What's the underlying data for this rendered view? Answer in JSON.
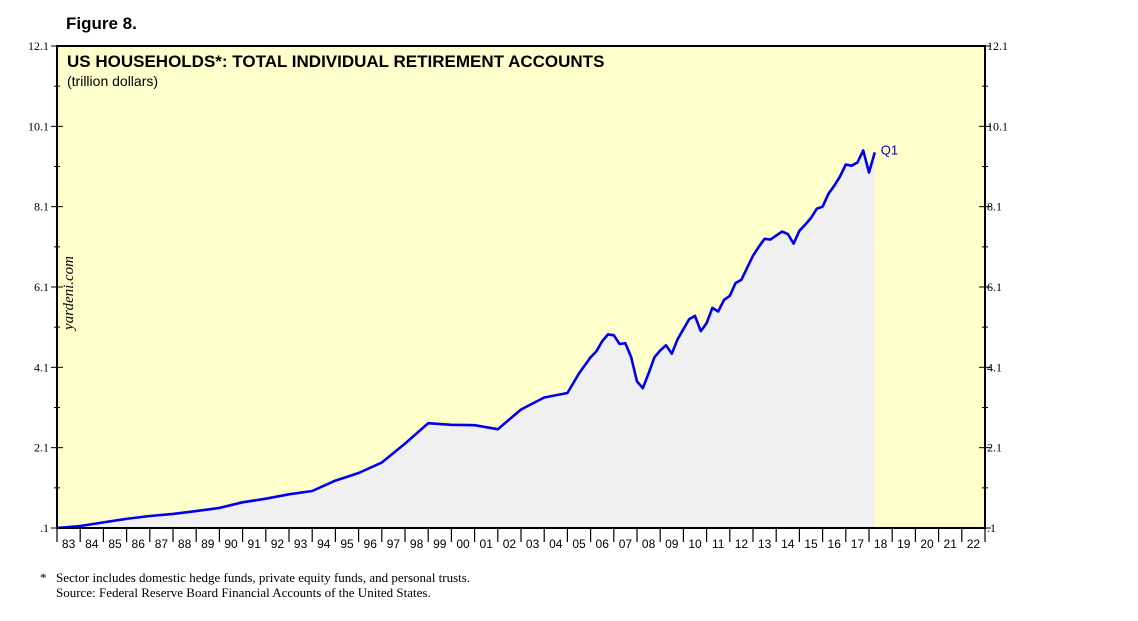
{
  "figure_label": "Figure 8.",
  "watermark": "yardeni.com",
  "footnote": {
    "mark": "*",
    "note": "Sector includes domestic hedge funds, private equity funds, and personal trusts.",
    "source": "Source: Federal Reserve Board Financial Accounts of the United States."
  },
  "colors": {
    "plot_background": "#ffffcc",
    "series_line": "#0000ee",
    "area_fill": "#f0f0f0",
    "frame": "#000000",
    "label_color": "#0000cc"
  },
  "chart_data": {
    "type": "area",
    "title": "US HOUSEHOLDS*: TOTAL INDIVIDUAL RETIREMENT ACCOUNTS",
    "subtitle": "(trillion dollars)",
    "xlabel": "",
    "ylabel": "",
    "xlim": [
      1983,
      2023
    ],
    "ylim": [
      0.1,
      12.1
    ],
    "yticks": [
      0.1,
      2.1,
      4.1,
      6.1,
      8.1,
      10.1,
      12.1
    ],
    "ytick_labels": [
      ".1",
      "2.1",
      "4.1",
      "6.1",
      "8.1",
      "10.1",
      "12.1"
    ],
    "xtick_labels": [
      "83",
      "84",
      "85",
      "86",
      "87",
      "88",
      "89",
      "90",
      "91",
      "92",
      "93",
      "94",
      "95",
      "96",
      "97",
      "98",
      "99",
      "00",
      "01",
      "02",
      "03",
      "04",
      "05",
      "06",
      "07",
      "08",
      "09",
      "10",
      "11",
      "12",
      "13",
      "14",
      "15",
      "16",
      "17",
      "18",
      "19",
      "20",
      "21",
      "22"
    ],
    "grid": false,
    "end_label": "Q1",
    "series": [
      {
        "values": [
          [
            1983.0,
            0.1
          ],
          [
            1984.0,
            0.15
          ],
          [
            1985.0,
            0.24
          ],
          [
            1986.0,
            0.33
          ],
          [
            1987.0,
            0.4
          ],
          [
            1988.0,
            0.45
          ],
          [
            1989.0,
            0.52
          ],
          [
            1990.0,
            0.6
          ],
          [
            1991.0,
            0.74
          ],
          [
            1992.0,
            0.83
          ],
          [
            1993.0,
            0.94
          ],
          [
            1994.0,
            1.02
          ],
          [
            1995.0,
            1.28
          ],
          [
            1996.0,
            1.47
          ],
          [
            1997.0,
            1.73
          ],
          [
            1998.0,
            2.2
          ],
          [
            1999.0,
            2.71
          ],
          [
            2000.0,
            2.67
          ],
          [
            2001.0,
            2.66
          ],
          [
            2002.0,
            2.56
          ],
          [
            2003.0,
            3.05
          ],
          [
            2004.0,
            3.35
          ],
          [
            2005.0,
            3.46
          ],
          [
            2005.5,
            3.95
          ],
          [
            2006.0,
            4.35
          ],
          [
            2006.25,
            4.5
          ],
          [
            2006.5,
            4.75
          ],
          [
            2006.75,
            4.92
          ],
          [
            2007.0,
            4.9
          ],
          [
            2007.25,
            4.68
          ],
          [
            2007.5,
            4.7
          ],
          [
            2007.75,
            4.35
          ],
          [
            2008.0,
            3.75
          ],
          [
            2008.25,
            3.58
          ],
          [
            2008.5,
            3.95
          ],
          [
            2008.75,
            4.35
          ],
          [
            2009.0,
            4.52
          ],
          [
            2009.25,
            4.65
          ],
          [
            2009.5,
            4.44
          ],
          [
            2009.75,
            4.8
          ],
          [
            2010.0,
            5.05
          ],
          [
            2010.25,
            5.3
          ],
          [
            2010.5,
            5.38
          ],
          [
            2010.75,
            5.0
          ],
          [
            2011.0,
            5.2
          ],
          [
            2011.25,
            5.58
          ],
          [
            2011.5,
            5.49
          ],
          [
            2011.75,
            5.78
          ],
          [
            2012.0,
            5.88
          ],
          [
            2012.25,
            6.2
          ],
          [
            2012.5,
            6.28
          ],
          [
            2012.75,
            6.58
          ],
          [
            2013.0,
            6.88
          ],
          [
            2013.25,
            7.1
          ],
          [
            2013.5,
            7.3
          ],
          [
            2013.75,
            7.28
          ],
          [
            2014.0,
            7.38
          ],
          [
            2014.25,
            7.48
          ],
          [
            2014.5,
            7.42
          ],
          [
            2014.75,
            7.18
          ],
          [
            2015.0,
            7.5
          ],
          [
            2015.25,
            7.65
          ],
          [
            2015.5,
            7.82
          ],
          [
            2015.75,
            8.05
          ],
          [
            2016.0,
            8.1
          ],
          [
            2016.25,
            8.42
          ],
          [
            2016.5,
            8.62
          ],
          [
            2016.75,
            8.85
          ],
          [
            2017.0,
            9.15
          ],
          [
            2017.25,
            9.12
          ],
          [
            2017.5,
            9.2
          ],
          [
            2017.75,
            9.5
          ],
          [
            2018.0,
            8.95
          ],
          [
            2018.25,
            9.45
          ]
        ]
      }
    ]
  }
}
